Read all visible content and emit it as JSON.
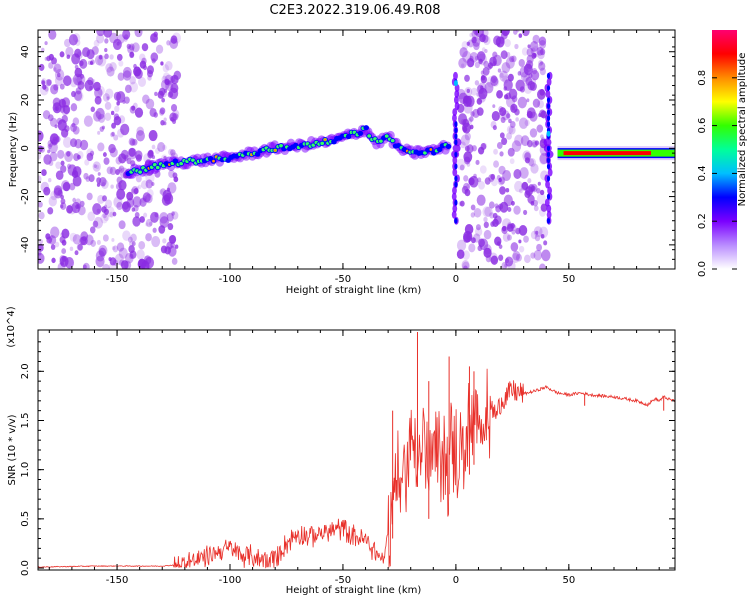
{
  "title": "C2E3.2022.319.06.49.R08",
  "colors": {
    "noise": "#8a2be2",
    "snr_line": "#e8302a",
    "colorbar": [
      "#ffffff",
      "#b98cff",
      "#7b00ff",
      "#0000ff",
      "#00bfff",
      "#00ff9a",
      "#33ff00",
      "#ffff00",
      "#ff8c00",
      "#ff0000",
      "#ff0070"
    ]
  },
  "chart_data": [
    {
      "type": "heatmap",
      "title": "",
      "xlabel": "Height of straight line (km)",
      "ylabel": "Frequency (Hz)",
      "xlim": [
        -185,
        97
      ],
      "ylim": [
        -50,
        49
      ],
      "x_ticks": [
        -150,
        -100,
        -50,
        0,
        50
      ],
      "y_ticks": [
        -40,
        -20,
        0,
        20,
        40
      ],
      "x_tick_labels": [
        "-150",
        "-100",
        "-50",
        "0",
        "50"
      ],
      "y_tick_labels": [
        "-40",
        "-20",
        "0",
        "20",
        "40"
      ],
      "colorbar": {
        "label": "Normalized spectral amplitude",
        "range": [
          0,
          1
        ],
        "ticks": [
          0.0,
          0.2,
          0.4,
          0.6,
          0.8
        ],
        "tick_labels": [
          "0.0",
          "0.2",
          "0.4",
          "0.6",
          "0.8"
        ]
      },
      "features": {
        "noise_regions_x": [
          [
            -185,
            -123
          ],
          [
            2,
            40
          ]
        ],
        "main_trace": [
          [
            -145,
            -10
          ],
          [
            -125,
            -6
          ],
          [
            -100,
            -4
          ],
          [
            -80,
            0
          ],
          [
            -70,
            1
          ],
          [
            -55,
            3
          ],
          [
            -45,
            6
          ],
          [
            -40,
            8
          ],
          [
            -35,
            2
          ],
          [
            -30,
            5
          ],
          [
            -25,
            0
          ],
          [
            -20,
            -2
          ],
          [
            -10,
            -1
          ],
          [
            -3,
            1
          ]
        ],
        "vertical_features_x": [
          0,
          41
        ],
        "flat_trace": {
          "x": [
            45,
            97
          ],
          "y": -2
        }
      }
    },
    {
      "type": "line",
      "title": "",
      "xlabel": "Height of straight line (km)",
      "ylabel": "SNR (10 * v/v)",
      "y_multiplier": "(x10^4)",
      "xlim": [
        -185,
        97
      ],
      "ylim": [
        -0.02,
        2.42
      ],
      "x_ticks": [
        -150,
        -100,
        -50,
        0,
        50
      ],
      "y_ticks": [
        0.0,
        0.5,
        1.0,
        1.5,
        2.0
      ],
      "x_tick_labels": [
        "-150",
        "-100",
        "-50",
        "0",
        "50"
      ],
      "y_tick_labels": [
        "0.0",
        "0.5",
        "1.0",
        "1.5",
        "2.0"
      ],
      "series": [
        {
          "name": "",
          "x": [
            -185,
            -160,
            -130,
            -125,
            -120,
            -115,
            -110,
            -105,
            -100,
            -95,
            -90,
            -85,
            -80,
            -75,
            -70,
            -65,
            -60,
            -55,
            -50,
            -45,
            -40,
            -35,
            -32,
            -30,
            -28,
            -26,
            -24,
            -22,
            -20,
            -18,
            -16,
            -14,
            -12,
            -10,
            -8,
            -6,
            -4,
            -2,
            0,
            2,
            5,
            8,
            10,
            12,
            15,
            18,
            20,
            25,
            30,
            35,
            40,
            45,
            50,
            55,
            60,
            65,
            70,
            75,
            80,
            85,
            88,
            90,
            92,
            95,
            97
          ],
          "y": [
            0.01,
            0.02,
            0.02,
            0.03,
            0.05,
            0.08,
            0.12,
            0.17,
            0.2,
            0.13,
            0.12,
            0.08,
            0.1,
            0.25,
            0.36,
            0.32,
            0.35,
            0.38,
            0.4,
            0.33,
            0.28,
            0.15,
            0.08,
            0.4,
            0.7,
            1.0,
            0.75,
            1.1,
            1.25,
            1.35,
            1.1,
            1.3,
            0.9,
            1.25,
            1.0,
            1.3,
            1.05,
            1.25,
            1.1,
            1.2,
            1.3,
            1.45,
            1.3,
            1.5,
            1.65,
            1.55,
            1.7,
            1.8,
            1.77,
            1.8,
            1.84,
            1.78,
            1.76,
            1.78,
            1.76,
            1.75,
            1.74,
            1.72,
            1.7,
            1.66,
            1.72,
            1.7,
            1.74,
            1.71,
            1.7
          ]
        }
      ],
      "spikes": [
        [
          -28,
          1.6
        ],
        [
          -17,
          2.4
        ],
        [
          -12,
          1.9
        ],
        [
          -3,
          2.15
        ],
        [
          6,
          2.05
        ],
        [
          8,
          2.0
        ]
      ]
    }
  ]
}
